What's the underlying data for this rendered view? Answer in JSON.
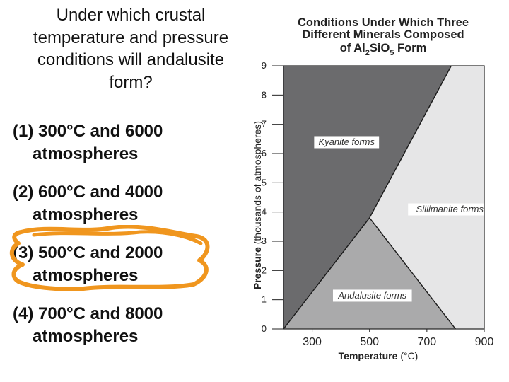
{
  "slide": {
    "question": "Under which crustal temperature and pressure conditions will andalusite form?",
    "options": [
      {
        "line1": "(1) 300°C and 6000",
        "line2": "atmospheres"
      },
      {
        "line1": "(2) 600°C and 4000",
        "line2": "atmospheres"
      },
      {
        "line1": "(3) 500°C and 2000",
        "line2": "atmospheres"
      },
      {
        "line1": "(4) 700°C and 8000",
        "line2": "atmospheres"
      }
    ],
    "circled_option": 3,
    "highlight_color": "#f0961e"
  },
  "chart_data": {
    "type": "area",
    "title_lines": [
      "Conditions Under Which Three",
      "Different Minerals Composed"
    ],
    "title_line3": {
      "prefix": "of Al",
      "sub1": "2",
      "mid": "SiO",
      "sub2": "5",
      "suffix": " Form"
    },
    "xlabel": "Temperature",
    "xlabel_unit": "(°C)",
    "ylabel": "Pressure",
    "ylabel_unit": "(thousands of atmospheres)",
    "xlim": [
      200,
      900
    ],
    "ylim": [
      0,
      9
    ],
    "xticks": [
      "300",
      "500",
      "700",
      "900"
    ],
    "xtick_values": [
      300,
      500,
      700,
      900
    ],
    "yticks": [
      "0",
      "1",
      "2",
      "3",
      "4",
      "5",
      "6",
      "7",
      "8",
      "9"
    ],
    "yticks_values": [
      0,
      1,
      2,
      3,
      4,
      5,
      6,
      7,
      8,
      9
    ],
    "triple_point": [
      500,
      3.8
    ],
    "regions": [
      {
        "name": "Kyanite forms",
        "color": "#6b6b6d",
        "polygon": [
          [
            200,
            0
          ],
          [
            200,
            9
          ],
          [
            785,
            9
          ],
          [
            500,
            3.8
          ],
          [
            200,
            0
          ]
        ],
        "label_at": [
          420,
          6.4
        ]
      },
      {
        "name": "Sillimanite forms",
        "color": "#e6e6e7",
        "polygon": [
          [
            785,
            9
          ],
          [
            900,
            9
          ],
          [
            900,
            0
          ],
          [
            800,
            0
          ],
          [
            500,
            3.8
          ]
        ],
        "label_at": [
          780,
          4.1
        ]
      },
      {
        "name": "Andalusite forms",
        "color": "#aaaaab",
        "polygon": [
          [
            200,
            0
          ],
          [
            500,
            3.8
          ],
          [
            800,
            0
          ]
        ],
        "label_at": [
          510,
          1.15
        ]
      }
    ],
    "boundaries": [
      [
        [
          200,
          0
        ],
        [
          500,
          3.8
        ]
      ],
      [
        [
          500,
          3.8
        ],
        [
          785,
          9
        ]
      ],
      [
        [
          500,
          3.8
        ],
        [
          800,
          0
        ]
      ]
    ]
  }
}
